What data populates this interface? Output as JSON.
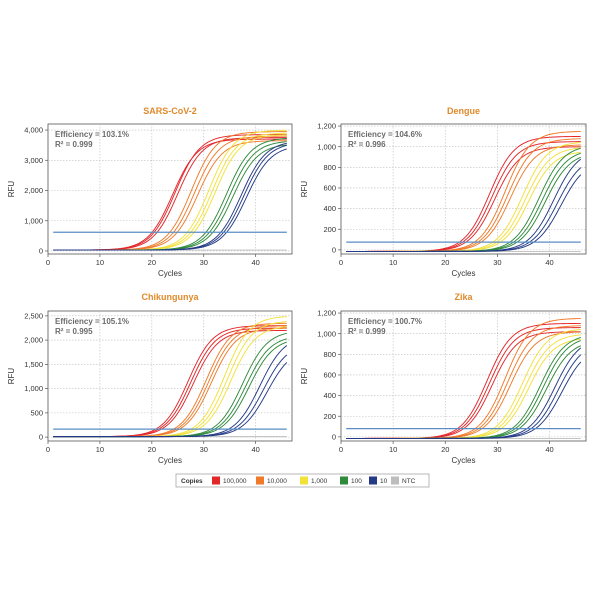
{
  "chart_data": [
    {
      "type": "line",
      "title": "SARS-CoV-2",
      "xlabel": "Cycles",
      "ylabel": "RFU",
      "xlim": [
        0,
        47
      ],
      "ylim": [
        -100,
        4200
      ],
      "xticks": [
        0,
        10,
        20,
        30,
        40
      ],
      "yticks": [
        0,
        1000,
        2000,
        3000,
        4000
      ],
      "ytick_labels": [
        "0",
        "1,000",
        "2,000",
        "3,000",
        "4,000"
      ],
      "threshold": 620,
      "efficiency_text": "Efficiency = 103.1%",
      "r2_text": "R² = 0.999",
      "grid": true,
      "curves": [
        {
          "series": "100,000",
          "ct": [
            24.0,
            24.5,
            25.0
          ],
          "plateau": [
            3700,
            3850,
            3750
          ],
          "baseline": 30
        },
        {
          "series": "10,000",
          "ct": [
            27.6,
            28.2,
            28.8
          ],
          "plateau": [
            3950,
            3800,
            3650
          ],
          "baseline": 30
        },
        {
          "series": "1,000",
          "ct": [
            31.0,
            31.6,
            32.2
          ],
          "plateau": [
            4000,
            3900,
            3850
          ],
          "baseline": 30
        },
        {
          "series": "100",
          "ct": [
            34.4,
            35.0,
            35.6
          ],
          "plateau": [
            3750,
            3650,
            3550
          ],
          "baseline": 30
        },
        {
          "series": "10",
          "ct": [
            37.2,
            37.7,
            38.2
          ],
          "plateau": [
            3650,
            3600,
            3500
          ],
          "baseline": 30
        }
      ]
    },
    {
      "type": "line",
      "title": "Dengue",
      "xlabel": "Cycles",
      "ylabel": "RFU",
      "xlim": [
        0,
        47
      ],
      "ylim": [
        -40,
        1220
      ],
      "xticks": [
        0,
        10,
        20,
        30,
        40
      ],
      "yticks": [
        0,
        200,
        400,
        600,
        800,
        1000,
        1200
      ],
      "ytick_labels": [
        "0",
        "200",
        "400",
        "600",
        "800",
        "1,000",
        "1,200"
      ],
      "threshold": 75,
      "efficiency_text": "Efficiency = 104.6%",
      "r2_text": "R² = 0.996",
      "grid": true,
      "curves": [
        {
          "series": "100,000",
          "ct": [
            28.5,
            29.0,
            29.5
          ],
          "plateau": [
            1100,
            1050,
            1000
          ],
          "baseline": -15
        },
        {
          "series": "10,000",
          "ct": [
            31.5,
            32.0,
            32.5
          ],
          "plateau": [
            1150,
            1080,
            1020
          ],
          "baseline": -15
        },
        {
          "series": "1,000",
          "ct": [
            34.8,
            35.4,
            36.0
          ],
          "plateau": [
            1050,
            1000,
            960
          ],
          "baseline": -15
        },
        {
          "series": "100",
          "ct": [
            38.0,
            38.6,
            39.2
          ],
          "plateau": [
            1020,
            980,
            950
          ],
          "baseline": -15
        },
        {
          "series": "10",
          "ct": [
            40.8,
            41.5,
            42.2
          ],
          "plateau": [
            980,
            920,
            880
          ],
          "baseline": -15
        }
      ]
    },
    {
      "type": "line",
      "title": "Chikungunya",
      "xlabel": "Cycles",
      "ylabel": "RFU",
      "xlim": [
        0,
        47
      ],
      "ylim": [
        -80,
        2600
      ],
      "xticks": [
        0,
        10,
        20,
        30,
        40
      ],
      "yticks": [
        0,
        500,
        1000,
        1500,
        2000,
        2500
      ],
      "ytick_labels": [
        "0",
        "500",
        "1,000",
        "1,500",
        "2,000",
        "2,500"
      ],
      "threshold": 165,
      "efficiency_text": "Efficiency = 105.1%",
      "r2_text": "R² = 0.995",
      "grid": true,
      "curves": [
        {
          "series": "100,000",
          "ct": [
            27.0,
            27.5,
            28.0
          ],
          "plateau": [
            2300,
            2250,
            2200
          ],
          "baseline": 10
        },
        {
          "series": "10,000",
          "ct": [
            30.5,
            31.0,
            31.5
          ],
          "plateau": [
            2350,
            2300,
            2250
          ],
          "baseline": 10
        },
        {
          "series": "1,000",
          "ct": [
            34.0,
            34.6,
            35.2
          ],
          "plateau": [
            2500,
            2400,
            2300
          ],
          "baseline": 10
        },
        {
          "series": "100",
          "ct": [
            37.5,
            38.1,
            38.7
          ],
          "plateau": [
            2200,
            2100,
            2050
          ],
          "baseline": 10
        },
        {
          "series": "10",
          "ct": [
            40.8,
            41.5,
            42.2
          ],
          "plateau": [
            2100,
            1950,
            1850
          ],
          "baseline": 10
        }
      ]
    },
    {
      "type": "line",
      "title": "Zika",
      "xlabel": "Cycles",
      "ylabel": "RFU",
      "xlim": [
        0,
        47
      ],
      "ylim": [
        -40,
        1220
      ],
      "xticks": [
        0,
        10,
        20,
        30,
        40
      ],
      "yticks": [
        0,
        200,
        400,
        600,
        800,
        1000,
        1200
      ],
      "ytick_labels": [
        "0",
        "200",
        "400",
        "600",
        "800",
        "1,000",
        "1,200"
      ],
      "threshold": 80,
      "efficiency_text": "Efficiency = 100.7%",
      "r2_text": "R² = 0.999",
      "grid": true,
      "curves": [
        {
          "series": "100,000",
          "ct": [
            28.0,
            28.5,
            29.0
          ],
          "plateau": [
            1100,
            1060,
            1020
          ],
          "baseline": -15
        },
        {
          "series": "10,000",
          "ct": [
            31.5,
            32.0,
            32.5
          ],
          "plateau": [
            1150,
            1080,
            1020
          ],
          "baseline": -15
        },
        {
          "series": "1,000",
          "ct": [
            34.8,
            35.4,
            36.0
          ],
          "plateau": [
            1050,
            1000,
            960
          ],
          "baseline": -15
        },
        {
          "series": "100",
          "ct": [
            38.2,
            38.8,
            39.4
          ],
          "plateau": [
            1000,
            980,
            940
          ],
          "baseline": -15
        },
        {
          "series": "10",
          "ct": [
            41.0,
            41.7,
            42.4
          ],
          "plateau": [
            970,
            930,
            890
          ],
          "baseline": -15
        }
      ]
    }
  ],
  "legend": {
    "title": "Copies",
    "placement": "bottom-center",
    "items": [
      {
        "label": "100,000",
        "color": "#e3262a"
      },
      {
        "label": "10,000",
        "color": "#f07a2a"
      },
      {
        "label": "1,000",
        "color": "#f2e13a"
      },
      {
        "label": "100",
        "color": "#2f8a3c"
      },
      {
        "label": "10",
        "color": "#243a86"
      },
      {
        "label": "NTC",
        "color": "#bdbdbd"
      }
    ]
  },
  "colors": {
    "title": "#e08a2a",
    "threshold": "#5a8ec4",
    "grid": "#bdbdbd",
    "annotation": "#6b6b6b"
  }
}
